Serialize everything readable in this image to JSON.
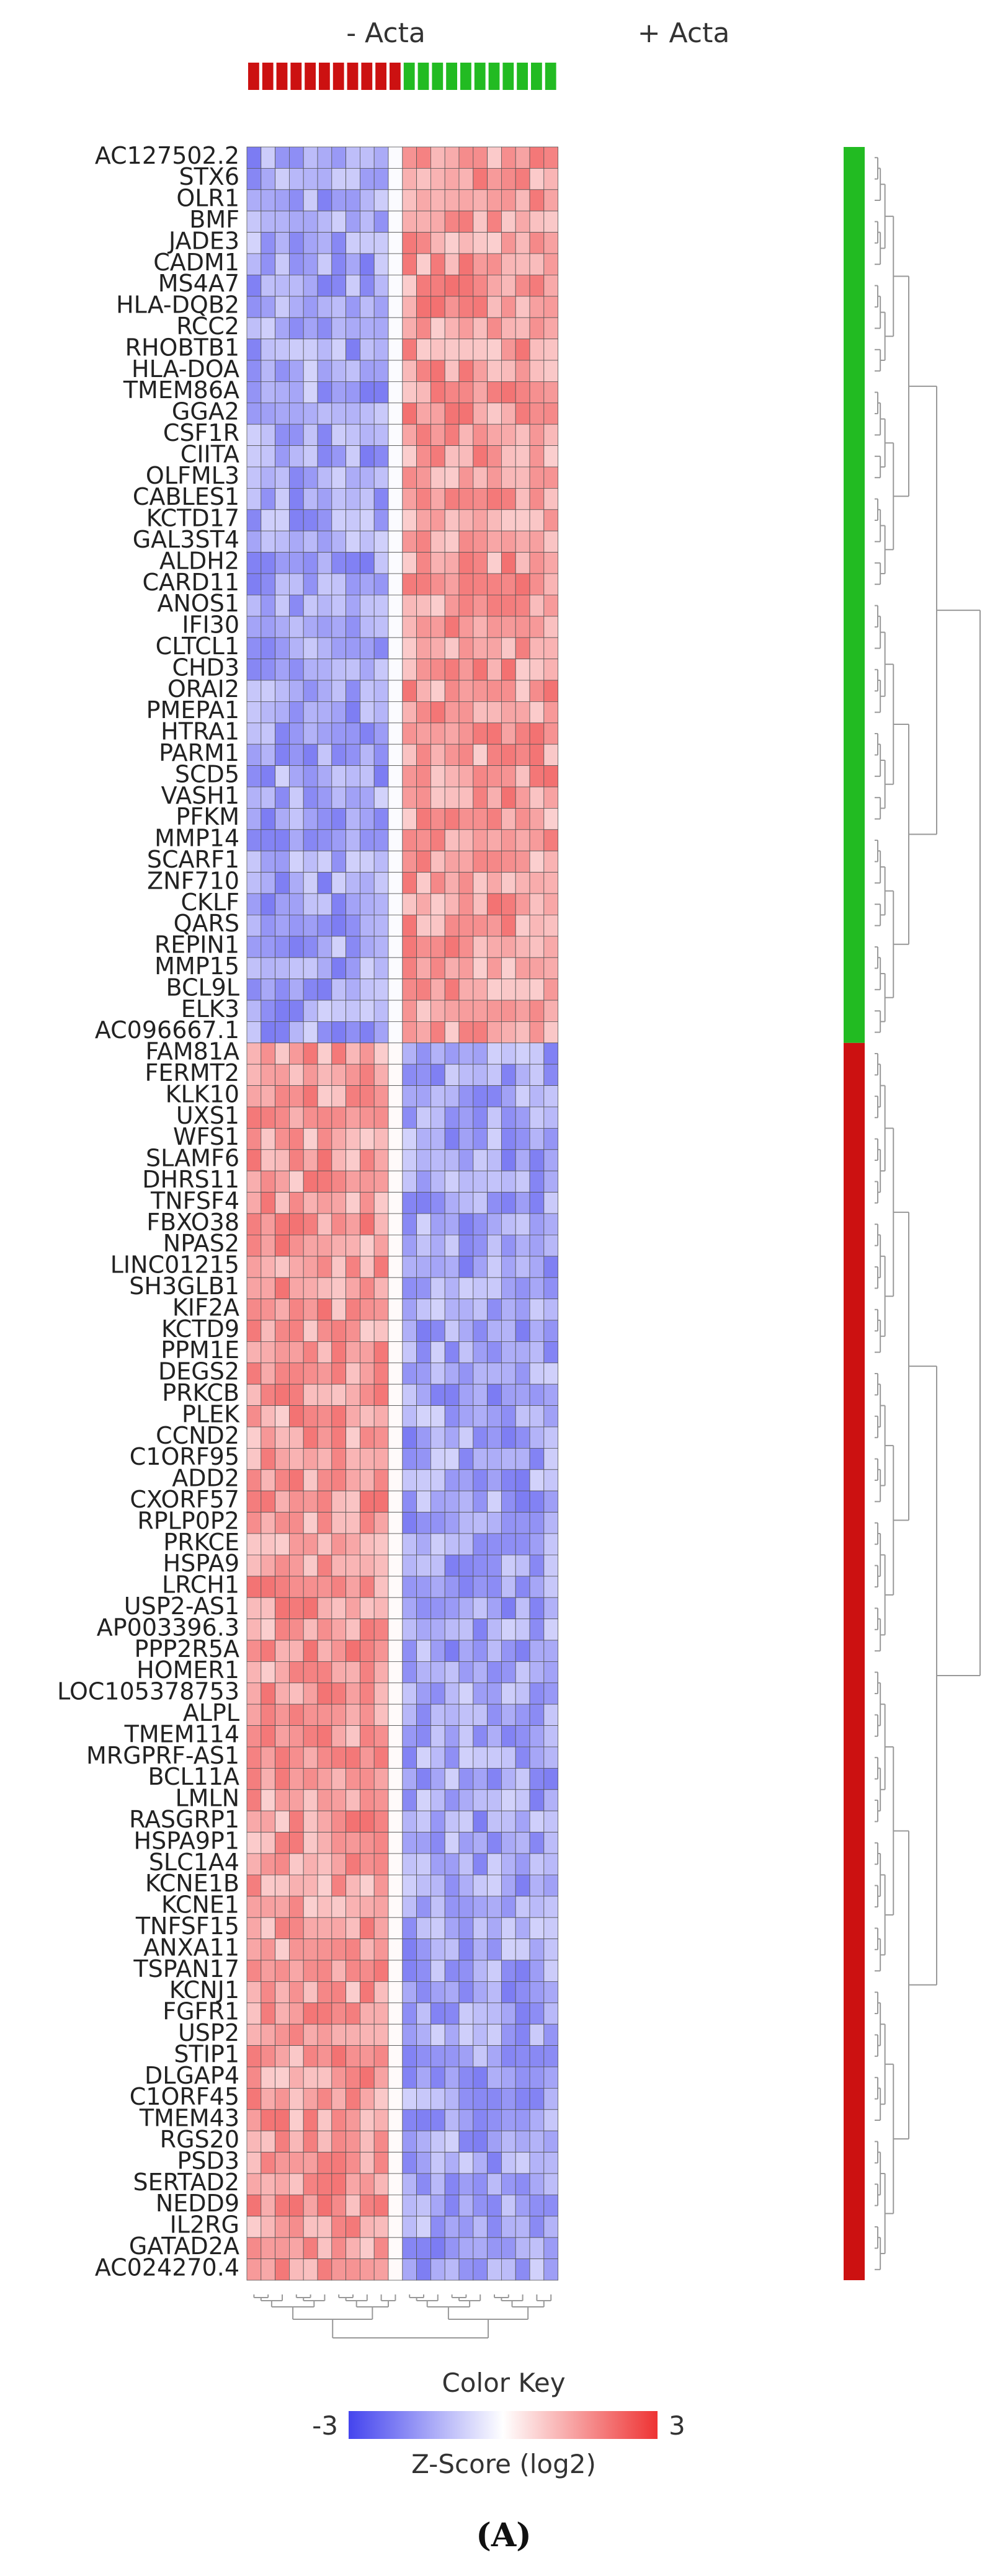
{
  "chart_data": {
    "type": "heatmap",
    "panel_label": "(A)",
    "groups": [
      {
        "name": "- Acta",
        "color": "#cc1111",
        "n_samples": 11
      },
      {
        "name": "+ Acta",
        "color": "#22bb22",
        "n_samples": 11
      }
    ],
    "rows": [
      "AC127502.2",
      "STX6",
      "OLR1",
      "BMF",
      "JADE3",
      "CADM1",
      "MS4A7",
      "HLA-DQB2",
      "RCC2",
      "RHOBTB1",
      "HLA-DOA",
      "TMEM86A",
      "GGA2",
      "CSF1R",
      "CIITA",
      "OLFML3",
      "CABLES1",
      "KCTD17",
      "GAL3ST4",
      "ALDH2",
      "CARD11",
      "ANOS1",
      "IFI30",
      "CLTCL1",
      "CHD3",
      "ORAI2",
      "PMEPA1",
      "HTRA1",
      "PARM1",
      "SCD5",
      "VASH1",
      "PFKM",
      "MMP14",
      "SCARF1",
      "ZNF710",
      "CKLF",
      "QARS",
      "REPIN1",
      "MMP15",
      "BCL9L",
      "ELK3",
      "AC096667.1",
      "FAM81A",
      "FERMT2",
      "KLK10",
      "UXS1",
      "WFS1",
      "SLAMF6",
      "DHRS11",
      "TNFSF4",
      "FBXO38",
      "NPAS2",
      "LINC01215",
      "SH3GLB1",
      "KIF2A",
      "KCTD9",
      "PPM1E",
      "DEGS2",
      "PRKCB",
      "PLEK",
      "CCND2",
      "C1ORF95",
      "ADD2",
      "CXORF57",
      "RPLP0P2",
      "PRKCE",
      "HSPA9",
      "LRCH1",
      "USP2-AS1",
      "AP003396.3",
      "PPP2R5A",
      "HOMER1",
      "LOC105378753",
      "ALPL",
      "TMEM114",
      "MRGPRF-AS1",
      "BCL11A",
      "LMLN",
      "RASGRP1",
      "HSPA9P1",
      "SLC1A4",
      "KCNE1B",
      "KCNE1",
      "TNFSF15",
      "ANXA11",
      "TSPAN17",
      "KCNJ1",
      "FGFR1",
      "USP2",
      "STIP1",
      "DLGAP4",
      "C1ORF45",
      "TMEM43",
      "RGS20",
      "PSD3",
      "SERTAD2",
      "NEDD9",
      "IL2RG",
      "GATAD2A",
      "AC024270.4"
    ],
    "row_clusters": [
      {
        "first": 0,
        "last": 41,
        "color": "#22bb22"
      },
      {
        "first": 42,
        "last": 99,
        "color": "#cc1111"
      }
    ],
    "cluster_pattern": {
      "rows_0_41": {
        "- Acta": -1.4,
        "+ Acta": 1.4
      },
      "rows_42_99": {
        "- Acta": 1.4,
        "+ Acta": -1.4
      }
    },
    "column_pattern_note": "",
    "color_key": {
      "title": "Color Key",
      "min_label": "-3",
      "max_label": "3",
      "min": -3,
      "max": 3,
      "low_color": "#4444ee",
      "mid_color": "#ffffff",
      "high_color": "#ee3333",
      "xlabel": "Z-Score (log2)"
    }
  }
}
